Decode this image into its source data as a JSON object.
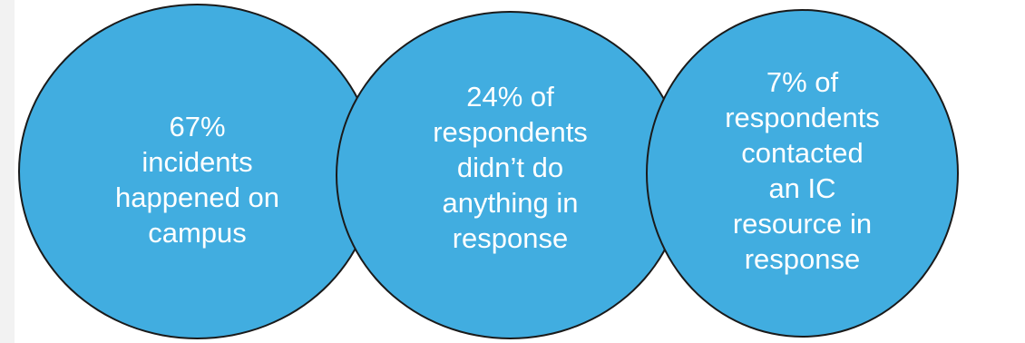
{
  "colors": {
    "circle_fill": "#41ade0",
    "circle_border": "#1a1a1a",
    "text": "#ffffff",
    "side_strip": "#f2f2f2"
  },
  "circles": [
    {
      "text": "67%\nincidents\nhappened on\ncampus"
    },
    {
      "text": "24% of\nrespondents\ndidn’t do\nanything in\nresponse"
    },
    {
      "text": "7% of\nrespondents\ncontacted\nan IC\nresource in\nresponse"
    }
  ]
}
